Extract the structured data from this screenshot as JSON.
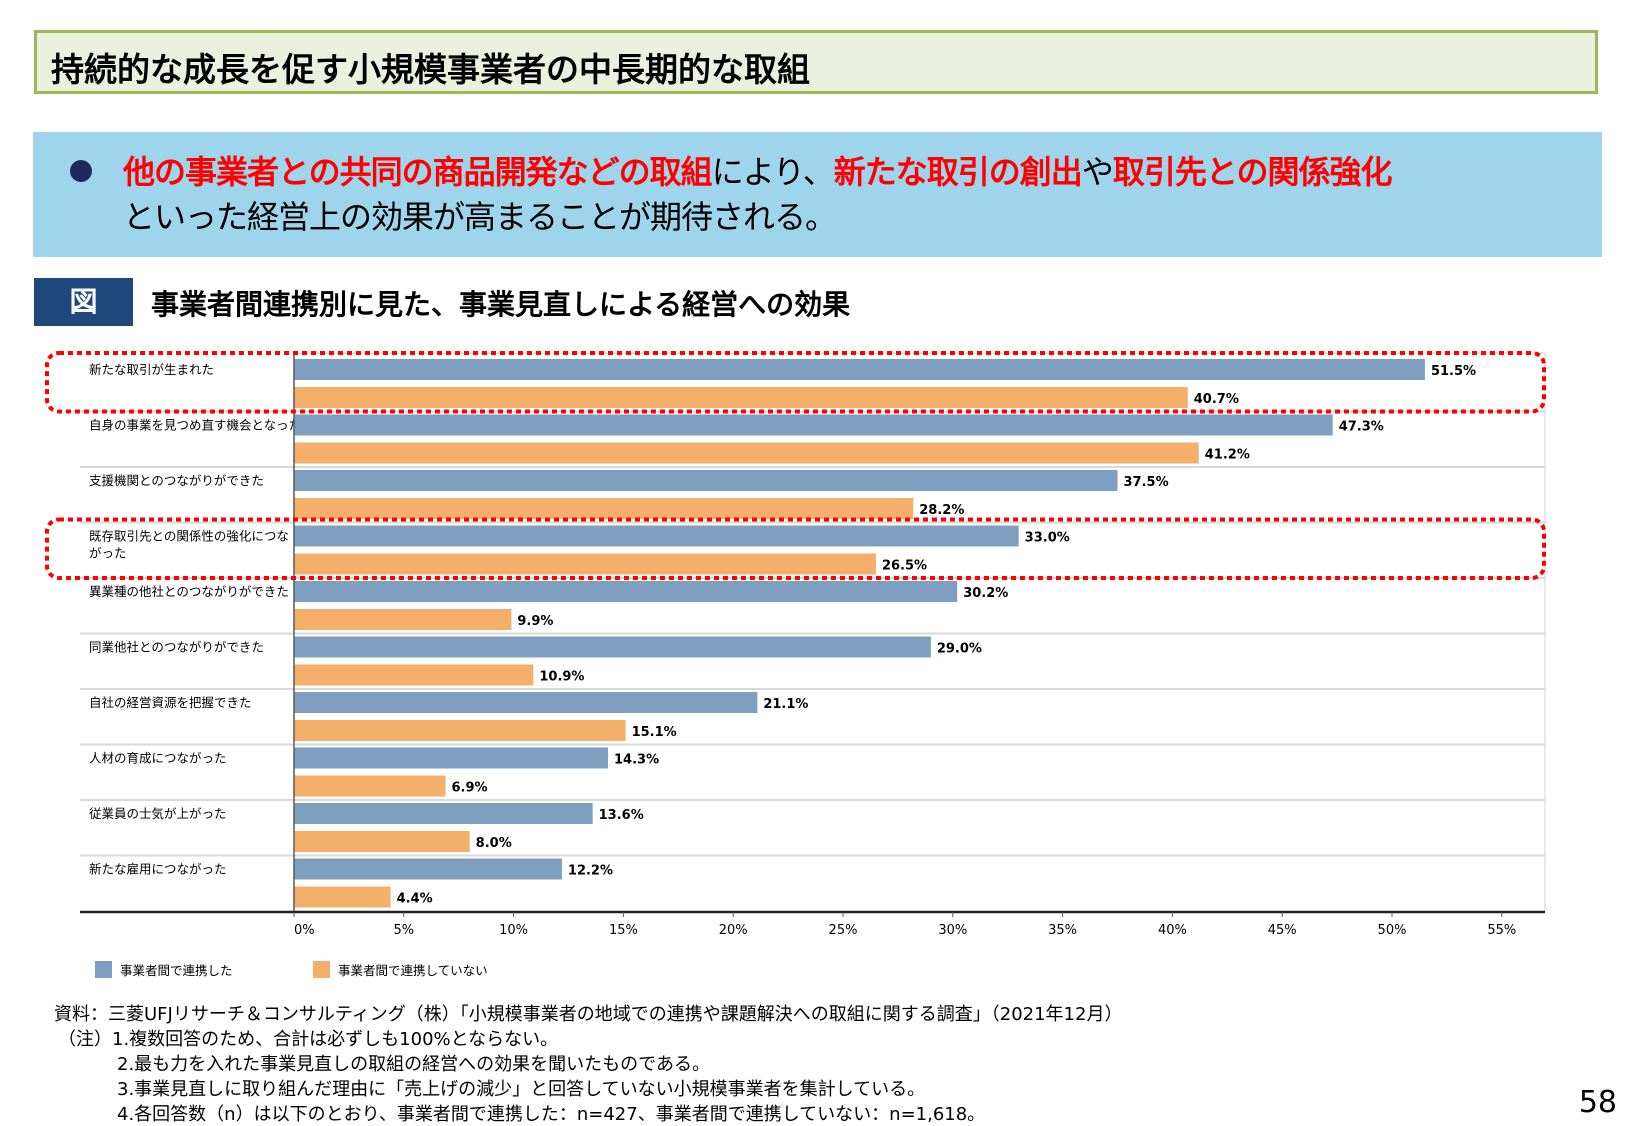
{
  "title": "持続的な成長を促す小規模事業者の中長期的な取組",
  "banner": {
    "line1": [
      {
        "text": "他の事業者との共同の商品開発などの取組",
        "emph": true
      },
      {
        "text": "により、",
        "emph": false
      },
      {
        "text": "新たな取引の創出",
        "emph": true
      },
      {
        "text": "や",
        "emph": false
      },
      {
        "text": "取引先との関係強化",
        "emph": true
      }
    ],
    "line2": "といった経営上の効果が高まることが期待される。"
  },
  "figure": {
    "tag": "図",
    "title": "事業者間連携別に見た、事業見直しによる経営への効果"
  },
  "chart_data": {
    "type": "bar",
    "orientation": "horizontal",
    "categories": [
      "新たな取引が生まれた",
      "自身の事業を見つめ直す機会となった",
      "支援機関とのつながりができた",
      "既存取引先との関係性の強化につながった",
      "異業種の他社とのつながりができた",
      "同業他社とのつながりができた",
      "自社の経営資源を把握できた",
      "人材の育成につながった",
      "従業員の士気が上がった",
      "新たな雇用につながった"
    ],
    "series": [
      {
        "name": "事業者間で連携した",
        "color": "#7f9fc0",
        "values": [
          51.5,
          47.3,
          37.5,
          33.0,
          30.2,
          29.0,
          21.1,
          14.3,
          13.6,
          12.2
        ]
      },
      {
        "name": "事業者間で連携していない",
        "color": "#f4b06b",
        "values": [
          40.7,
          41.2,
          28.2,
          26.5,
          9.9,
          10.9,
          15.1,
          6.9,
          8.0,
          4.4
        ]
      }
    ],
    "xlim": [
      0,
      55
    ],
    "ticks": [
      "0%",
      "5%",
      "10%",
      "15%",
      "20%",
      "25%",
      "30%",
      "35%",
      "40%",
      "45%",
      "50%",
      "55%"
    ],
    "legend": "bottom-left",
    "highlighted_categories": [
      0,
      3
    ],
    "highlight_color": "#ff0000"
  },
  "notes": [
    "資料：三菱UFJリサーチ＆コンサルティング（株）「小規模事業者の地域での連携や課題解決への取組に関する調査」（2021年12月）",
    "（注）1.複数回答のため、合計は必ずしも100%とならない。",
    "2.最も力を入れた事業見直しの取組の経営への効果を聞いたものである。",
    "3.事業見直しに取り組んだ理由に「売上げの減少」と回答していない小規模事業者を集計している。",
    "4.各回答数（n）は以下のとおり、事業者間で連携した：n=427、事業者間で連携していない：n=1,618。"
  ],
  "page_number": "58"
}
